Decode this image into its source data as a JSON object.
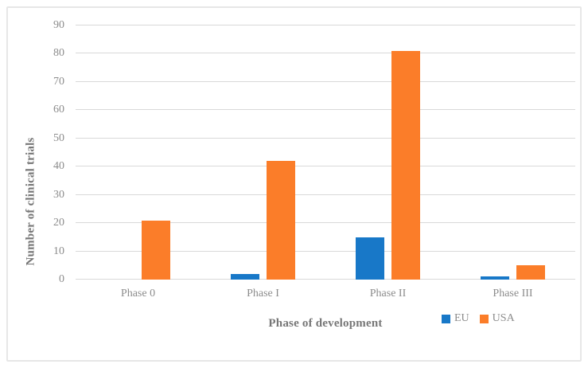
{
  "chart_data": {
    "type": "bar",
    "title": "",
    "categories": [
      "Phase 0",
      "Phase I",
      "Phase II",
      "Phase III"
    ],
    "series": [
      {
        "name": "EU",
        "color": "#1878c8",
        "values": [
          0,
          2,
          15,
          1
        ]
      },
      {
        "name": "USA",
        "color": "#fb7d29",
        "values": [
          21,
          42,
          81,
          5
        ]
      }
    ],
    "xlabel": "Phase of development",
    "ylabel": "Number of clinical trials",
    "ylim": [
      0,
      90
    ],
    "ytick_step": 10,
    "yticks": [
      0,
      10,
      20,
      30,
      40,
      50,
      60,
      70,
      80,
      90
    ],
    "grid": true,
    "gridline_color": "#d9d9d9",
    "legend_position": "bottom-right"
  }
}
